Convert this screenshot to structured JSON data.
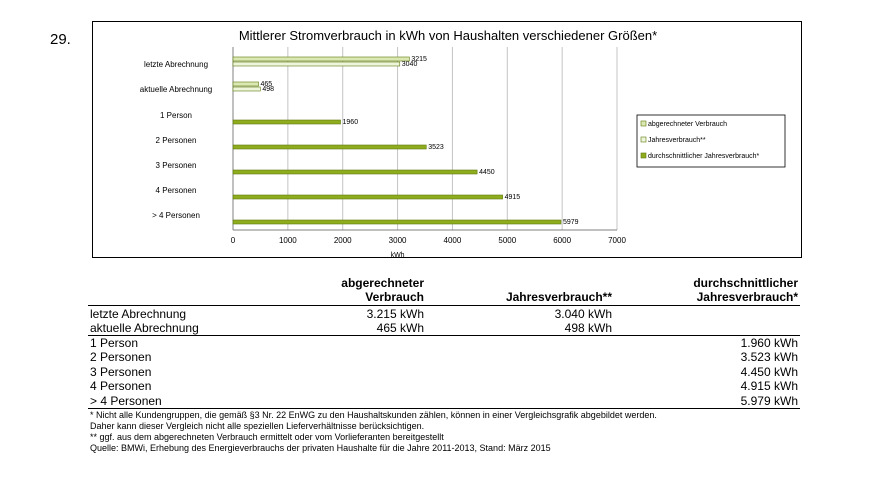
{
  "page_number": "29.",
  "chart_data": {
    "type": "bar",
    "orientation": "horizontal",
    "title": "Mittlerer Stromverbrauch in kWh von Haushalten verschiedener Größen*",
    "xlabel": "kWh",
    "xlim": [
      0,
      7000
    ],
    "x_ticks": [
      "0",
      "1000",
      "2000",
      "3000",
      "4000",
      "5000",
      "6000",
      "7000"
    ],
    "grid": "vertical",
    "legend_position": "right",
    "categories": [
      "letzte Abrechnung",
      "aktuelle Abrechnung",
      "1 Person",
      "2 Personen",
      "3 Personen",
      "4 Personen",
      "> 4 Personen"
    ],
    "series": [
      {
        "name": "abgerechneter Verbrauch",
        "color": "#dbe8b4",
        "values": [
          3215,
          465,
          null,
          null,
          null,
          null,
          null
        ]
      },
      {
        "name": "Jahresverbrauch**",
        "color": "#eef5da",
        "values": [
          3040,
          498,
          null,
          null,
          null,
          null,
          null
        ]
      },
      {
        "name": "durchschnittlicher Jahresverbrauch*",
        "color": "#8fac1f",
        "values": [
          null,
          null,
          1960,
          3523,
          4450,
          4915,
          5979
        ]
      }
    ]
  },
  "table": {
    "headers": [
      {
        "line1": "abgerechneter",
        "line2": "Verbrauch"
      },
      {
        "line1": "",
        "line2": "Jahresverbrauch**"
      },
      {
        "line1": "durchschnittlicher",
        "line2": "Jahresverbrauch*"
      }
    ],
    "rows": [
      {
        "label": "letzte Abrechnung",
        "abgerechnet": "3.215 kWh",
        "jahres": "3.040 kWh",
        "durchschnitt": ""
      },
      {
        "label": "aktuelle Abrechnung",
        "abgerechnet": "465 kWh",
        "jahres": "498 kWh",
        "durchschnitt": ""
      },
      {
        "label": "1 Person",
        "abgerechnet": "",
        "jahres": "",
        "durchschnitt": "1.960 kWh"
      },
      {
        "label": "2 Personen",
        "abgerechnet": "",
        "jahres": "",
        "durchschnitt": "3.523 kWh"
      },
      {
        "label": "3 Personen",
        "abgerechnet": "",
        "jahres": "",
        "durchschnitt": "4.450 kWh"
      },
      {
        "label": "4 Personen",
        "abgerechnet": "",
        "jahres": "",
        "durchschnitt": "4.915 kWh"
      },
      {
        "label": "> 4 Personen",
        "abgerechnet": "",
        "jahres": "",
        "durchschnitt": "5.979 kWh"
      }
    ]
  },
  "notes": [
    "* Nicht alle Kundengruppen, die gemäß §3 Nr. 22 EnWG zu den Haushaltskunden zählen, können in einer Vergleichsgrafik abgebildet werden.",
    "Daher kann dieser Vergleich nicht alle speziellen Lieferverhältnisse berücksichtigen.",
    "** ggf. aus dem abgerechneten Verbrauch ermittelt oder vom Vorlieferanten bereitgestellt",
    "Quelle: BMWi, Erhebung des Energieverbrauchs der privaten Haushalte für die Jahre 2011-2013, Stand: März 2015"
  ]
}
